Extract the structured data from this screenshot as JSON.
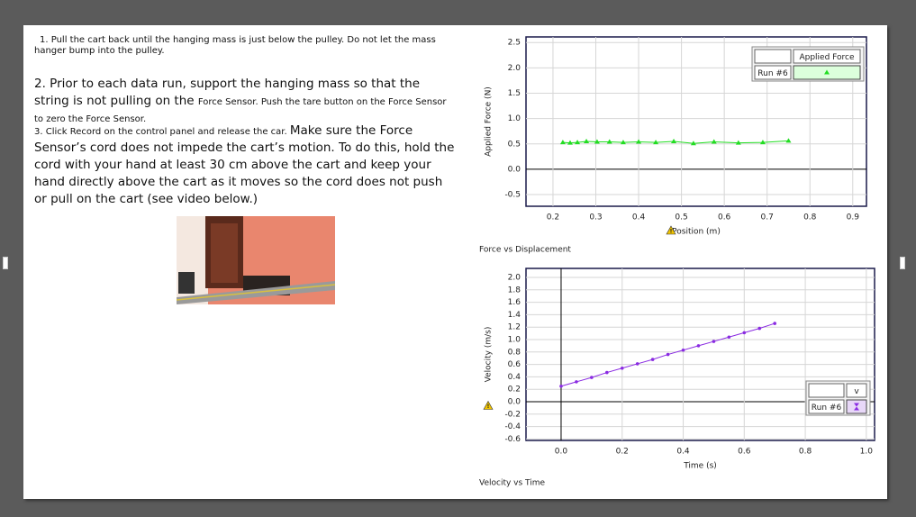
{
  "instructions": {
    "step1": "1. Pull the cart back until the hanging mass is just below the pulley. Do not let the mass hanger bump into the pulley.",
    "step2_large": "2. Prior to each data run, support the hanging mass so that the string is not pulling on the ",
    "step2_small": "Force Sensor. Push the tare button on the Force Sensor to zero the Force Sensor.",
    "step3_small": "3. Click Record on the control panel and release the car. ",
    "step3_large": "Make sure the Force Sensor’s cord does not impede the cart’s motion.  To do this, hold the cord with your hand at least 30 cm above the cart and keep your hand directly above the cart as it moves so the cord does not push or pull on the cart (see video below.)"
  },
  "chart_data": [
    {
      "type": "line",
      "caption": "Force vs Displacement",
      "x_label": "Position (m)",
      "y_label": "Applied Force (N)",
      "run_label": "Run #6",
      "grid": true,
      "marker": "triangle",
      "x": [
        0.223,
        0.24,
        0.257,
        0.278,
        0.303,
        0.332,
        0.364,
        0.4,
        0.44,
        0.482,
        0.528,
        0.576,
        0.633,
        0.69,
        0.75
      ],
      "series": [
        {
          "name": "Applied Force",
          "color": "#22dd22",
          "values": [
            0.53,
            0.52,
            0.53,
            0.55,
            0.54,
            0.54,
            0.53,
            0.54,
            0.53,
            0.55,
            0.51,
            0.54,
            0.52,
            0.53,
            0.56
          ]
        }
      ],
      "xlim": [
        0.137,
        0.932
      ],
      "ylim": [
        -0.73,
        2.61
      ],
      "xticks": [
        0.2,
        0.3,
        0.4,
        0.5,
        0.6,
        0.7,
        0.8,
        0.9
      ],
      "yticks": [
        -0.5,
        {
          "value": 0,
          "label": "0.0"
        },
        0.5,
        {
          "value": 1,
          "label": "1.0"
        },
        1.5,
        {
          "value": 2,
          "label": "2.0"
        },
        2.5
      ]
    },
    {
      "type": "line",
      "caption": "Velocity vs Time",
      "x_label": "Time (s)",
      "y_label": "Velocity (m/s)",
      "run_label": "Run #6",
      "grid": true,
      "marker": "dot",
      "x": [
        0,
        0.05,
        0.1,
        0.15,
        0.2,
        0.25,
        0.3,
        0.35,
        0.4,
        0.45,
        0.5,
        0.55,
        0.6,
        0.65,
        0.7
      ],
      "series": [
        {
          "name": "v",
          "color": "#8a2be2",
          "values": [
            0.25,
            0.32,
            0.39,
            0.47,
            0.54,
            0.61,
            0.68,
            0.76,
            0.83,
            0.9,
            0.97,
            1.04,
            1.11,
            1.18,
            1.26
          ]
        }
      ],
      "xlim": [
        -0.115,
        1.027
      ],
      "ylim": [
        -0.623,
        2.145
      ],
      "xticks": [
        {
          "value": 0,
          "label": "0.0"
        },
        0.2,
        0.4,
        0.6,
        0.8,
        {
          "value": 1,
          "label": "1.0"
        }
      ],
      "yticks": [
        -0.6,
        -0.4,
        -0.2,
        {
          "value": 0,
          "label": "0.0"
        },
        0.2,
        0.4,
        0.6,
        0.8,
        {
          "value": 1,
          "label": "1.0"
        },
        1.2,
        1.4,
        1.6,
        1.8,
        {
          "value": 2,
          "label": "2.0"
        }
      ]
    }
  ]
}
